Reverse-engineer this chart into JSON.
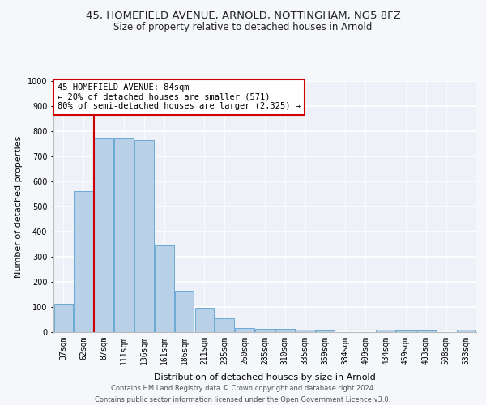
{
  "title1": "45, HOMEFIELD AVENUE, ARNOLD, NOTTINGHAM, NG5 8FZ",
  "title2": "Size of property relative to detached houses in Arnold",
  "xlabel": "Distribution of detached houses by size in Arnold",
  "ylabel": "Number of detached properties",
  "categories": [
    "37sqm",
    "62sqm",
    "87sqm",
    "111sqm",
    "136sqm",
    "161sqm",
    "186sqm",
    "211sqm",
    "235sqm",
    "260sqm",
    "285sqm",
    "310sqm",
    "335sqm",
    "359sqm",
    "384sqm",
    "409sqm",
    "434sqm",
    "459sqm",
    "483sqm",
    "508sqm",
    "533sqm"
  ],
  "values": [
    112,
    560,
    775,
    775,
    765,
    345,
    163,
    97,
    55,
    17,
    12,
    12,
    10,
    8,
    0,
    0,
    10,
    5,
    5,
    0,
    10
  ],
  "bar_color": "#b8d0e8",
  "bar_edge_color": "#6aaad4",
  "vline_color": "#cc0000",
  "annotation_text": "45 HOMEFIELD AVENUE: 84sqm\n← 20% of detached houses are smaller (571)\n80% of semi-detached houses are larger (2,325) →",
  "annotation_box_color": "#ffffff",
  "annotation_box_edge": "#cc0000",
  "ylim": [
    0,
    1000
  ],
  "yticks": [
    0,
    100,
    200,
    300,
    400,
    500,
    600,
    700,
    800,
    900,
    1000
  ],
  "footer1": "Contains HM Land Registry data © Crown copyright and database right 2024.",
  "footer2": "Contains public sector information licensed under the Open Government Licence v3.0.",
  "bg_color": "#eef2f8",
  "grid_color": "#ffffff",
  "title1_fontsize": 9.5,
  "title2_fontsize": 8.5,
  "tick_fontsize": 7,
  "ylabel_fontsize": 8,
  "xlabel_fontsize": 8,
  "footer_fontsize": 6,
  "annotation_fontsize": 7.5
}
